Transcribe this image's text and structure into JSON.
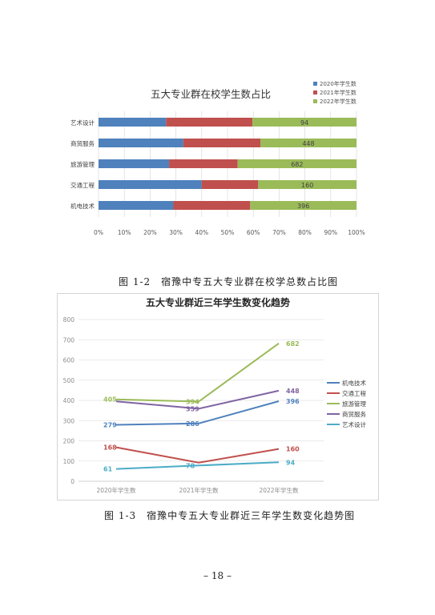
{
  "captions": {
    "fig1": "图 1-2　宿豫中专五大专业群在校学总数占比图",
    "fig2": "图 1-3　宿豫中专五大专业群近三年学生数变化趋势图"
  },
  "page_number": "– 18 –",
  "chart_data": [
    {
      "type": "bar",
      "stacked": "percent",
      "orientation": "horizontal",
      "title": "五大专业群在校学生数占比",
      "categories": [
        "艺术设计",
        "商贸服务",
        "旅游管理",
        "交通工程",
        "机电技术"
      ],
      "series": [
        {
          "name": "2020年学生数",
          "color": "#4f81bd",
          "values": [
            61,
            395,
            405,
            168,
            279
          ]
        },
        {
          "name": "2021年学生数",
          "color": "#c0504d",
          "values": [
            78,
            359,
            394,
            92,
            286
          ]
        },
        {
          "name": "2022年学生数",
          "color": "#9bbb59",
          "values": [
            94,
            448,
            682,
            160,
            396
          ]
        }
      ],
      "data_labels": [
        [
          "",
          "",
          "94"
        ],
        [
          "",
          "",
          "448"
        ],
        [
          "",
          "",
          "682"
        ],
        [
          "",
          "",
          "160"
        ],
        [
          "",
          "",
          "396"
        ]
      ],
      "x_ticks": [
        "0%",
        "10%",
        "20%",
        "30%",
        "40%",
        "50%",
        "60%",
        "70%",
        "80%",
        "90%",
        "100%"
      ],
      "xlim": [
        0,
        100
      ],
      "legend_position": "top-right",
      "grid": true
    },
    {
      "type": "line",
      "title": "五大专业群近三年学生数变化趋势",
      "categories": [
        "2020年学生数",
        "2021年学生数",
        "2022年学生数"
      ],
      "series": [
        {
          "name": "机电技术",
          "color": "#4f81bd",
          "values": [
            279,
            286,
            396
          ],
          "labels": [
            "279",
            "286",
            "396"
          ]
        },
        {
          "name": "交通工程",
          "color": "#c0504d",
          "values": [
            168,
            92,
            160
          ],
          "labels": [
            "168",
            "",
            "160"
          ]
        },
        {
          "name": "旅游管理",
          "color": "#9bbb59",
          "values": [
            405,
            394,
            682
          ],
          "labels": [
            "405",
            "394",
            "682"
          ]
        },
        {
          "name": "商贸服务",
          "color": "#8064a2",
          "values": [
            395,
            359,
            448
          ],
          "labels": [
            "",
            "359",
            "448"
          ]
        },
        {
          "name": "艺术设计",
          "color": "#4bacc6",
          "values": [
            61,
            78,
            94
          ],
          "labels": [
            "61",
            "78",
            "94"
          ]
        }
      ],
      "y_ticks": [
        "0",
        "100",
        "200",
        "300",
        "400",
        "500",
        "600",
        "700",
        "800"
      ],
      "ylim": [
        0,
        800
      ],
      "legend_position": "right",
      "grid": true
    }
  ]
}
